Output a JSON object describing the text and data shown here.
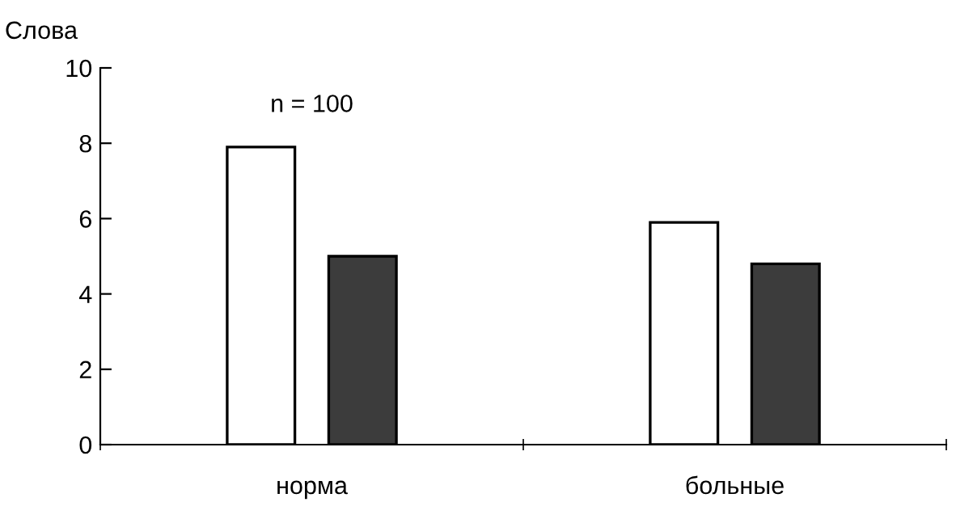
{
  "chart_data": {
    "type": "bar",
    "ylabel": "Слова",
    "categories": [
      "норма",
      "больные"
    ],
    "series": [
      {
        "color": "#ffffff",
        "values": [
          7.9,
          5.9
        ]
      },
      {
        "color": "#3c3c3c",
        "values": [
          5.0,
          4.8
        ]
      }
    ],
    "ylim": [
      0,
      10
    ],
    "yticks": [
      0,
      2,
      4,
      6,
      8,
      10
    ],
    "annotations": [
      "n = 100"
    ],
    "grid": false
  }
}
